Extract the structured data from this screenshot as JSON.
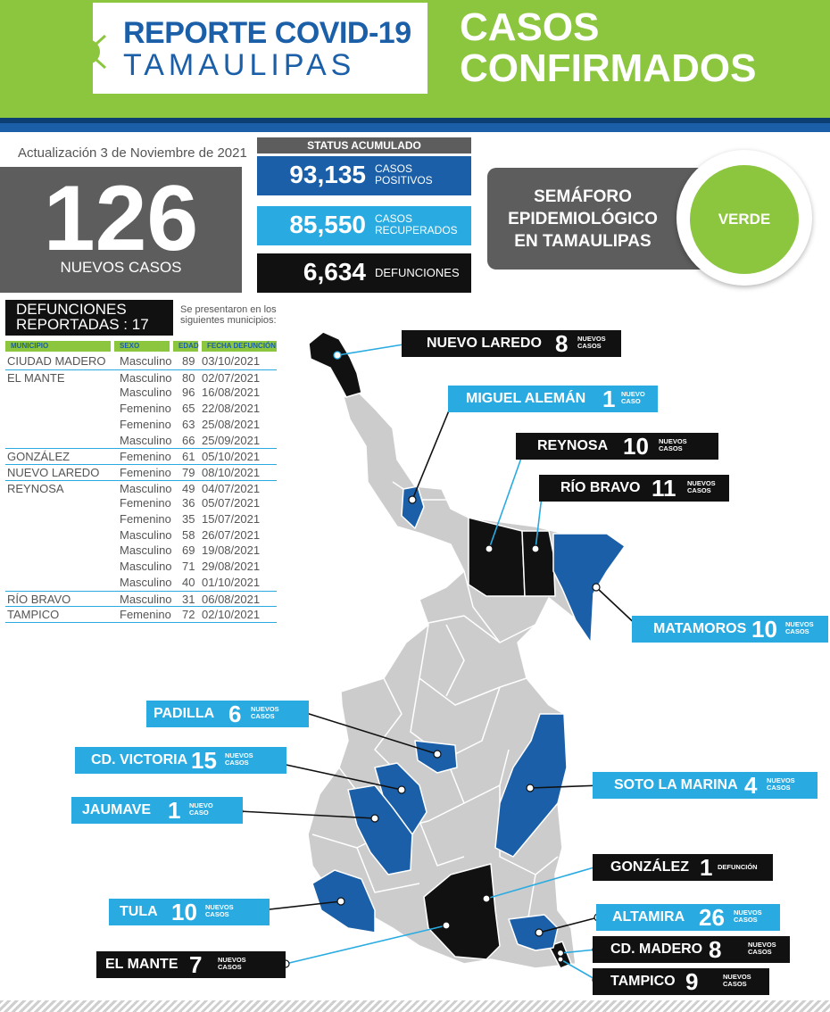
{
  "header": {
    "logo_line1": "REPORTE COVID-19",
    "logo_line2": "TAMAULIPAS",
    "title_line1": "CASOS",
    "title_line2": "CONFIRMADOS",
    "brand_green": "#8cc63f",
    "brand_blue": "#1a5fa8"
  },
  "update": "Actualización 3 de Noviembre de 2021",
  "new_cases": {
    "value": "126",
    "label": "NUEVOS CASOS"
  },
  "status": {
    "title": "STATUS ACUMULADO",
    "positives": {
      "value": "93,135",
      "label1": "CASOS",
      "label2": "POSITIVOS"
    },
    "recovered": {
      "value": "85,550",
      "label1": "CASOS",
      "label2": "RECUPERADOS"
    },
    "deaths": {
      "value": "6,634",
      "label": "DEFUNCIONES"
    }
  },
  "semaforo": {
    "line1": "SEMÁFORO",
    "line2": "EPIDEMIOLÓGICO",
    "line3": "EN TAMAULIPAS",
    "value": "VERDE",
    "color": "#8cc63f"
  },
  "deaths_table": {
    "title_line1": "DEFUNCIONES",
    "title_line2": "REPORTADAS : 17",
    "note": "Se presentaron en los siguientes municipios:",
    "headers": {
      "municipio": "MUNICIPIO",
      "sexo": "SEXO",
      "edad": "EDAD",
      "fecha": "FECHA DEFUNCIÓN"
    },
    "rows": [
      {
        "municipio": "CIUDAD MADERO",
        "sexo": "Masculino",
        "edad": "89",
        "fecha": "03/10/2021"
      },
      {
        "municipio": "EL MANTE",
        "sexo": "Masculino",
        "edad": "80",
        "fecha": "02/07/2021"
      },
      {
        "municipio": "",
        "sexo": "Masculino",
        "edad": "96",
        "fecha": "16/08/2021"
      },
      {
        "municipio": "",
        "sexo": "Femenino",
        "edad": "65",
        "fecha": "22/08/2021"
      },
      {
        "municipio": "",
        "sexo": "Femenino",
        "edad": "63",
        "fecha": "25/08/2021"
      },
      {
        "municipio": "",
        "sexo": "Masculino",
        "edad": "66",
        "fecha": "25/09/2021"
      },
      {
        "municipio": "GONZÁLEZ",
        "sexo": "Femenino",
        "edad": "61",
        "fecha": "05/10/2021"
      },
      {
        "municipio": "NUEVO LAREDO",
        "sexo": "Femenino",
        "edad": "79",
        "fecha": "08/10/2021"
      },
      {
        "municipio": "REYNOSA",
        "sexo": "Masculino",
        "edad": "49",
        "fecha": "04/07/2021"
      },
      {
        "municipio": "",
        "sexo": "Femenino",
        "edad": "36",
        "fecha": "05/07/2021"
      },
      {
        "municipio": "",
        "sexo": "Femenino",
        "edad": "35",
        "fecha": "15/07/2021"
      },
      {
        "municipio": "",
        "sexo": "Masculino",
        "edad": "58",
        "fecha": "26/07/2021"
      },
      {
        "municipio": "",
        "sexo": "Masculino",
        "edad": "69",
        "fecha": "19/08/2021"
      },
      {
        "municipio": "",
        "sexo": "Masculino",
        "edad": "71",
        "fecha": "29/08/2021"
      },
      {
        "municipio": "",
        "sexo": "Masculino",
        "edad": "40",
        "fecha": "01/10/2021"
      },
      {
        "municipio": "RÍO BRAVO",
        "sexo": "Masculino",
        "edad": "31",
        "fecha": "06/08/2021"
      },
      {
        "municipio": "TAMPICO",
        "sexo": "Femenino",
        "edad": "72",
        "fecha": "02/10/2021"
      }
    ]
  },
  "map_labels": {
    "nuevo_laredo": {
      "name": "NUEVO LAREDO",
      "num": "8",
      "unit1": "NUEVOS",
      "unit2": "CASOS"
    },
    "miguel_aleman": {
      "name": "MIGUEL ALEMÁN",
      "num": "1",
      "unit1": "NUEVO",
      "unit2": "CASO"
    },
    "reynosa": {
      "name": "REYNOSA",
      "num": "10",
      "unit1": "NUEVOS",
      "unit2": "CASOS"
    },
    "rio_bravo": {
      "name": "RÍO BRAVO",
      "num": "11",
      "unit1": "NUEVOS",
      "unit2": "CASOS"
    },
    "matamoros": {
      "name": "MATAMOROS",
      "num": "10",
      "unit1": "NUEVOS",
      "unit2": "CASOS"
    },
    "padilla": {
      "name": "PADILLA",
      "num": "6",
      "unit1": "NUEVOS",
      "unit2": "CASOS"
    },
    "cd_victoria": {
      "name": "CD. VICTORIA",
      "num": "15",
      "unit1": "NUEVOS",
      "unit2": "CASOS"
    },
    "soto_la_marina": {
      "name": "SOTO LA MARINA",
      "num": "4",
      "unit1": "NUEVOS",
      "unit2": "CASOS"
    },
    "jaumave": {
      "name": "JAUMAVE",
      "num": "1",
      "unit1": "NUEVO",
      "unit2": "CASO"
    },
    "gonzalez": {
      "name": "GONZÁLEZ",
      "num": "1",
      "unit1": "DEFUNCIÓN",
      "unit2": ""
    },
    "tula": {
      "name": "TULA",
      "num": "10",
      "unit1": "NUEVOS",
      "unit2": "CASOS"
    },
    "altamira": {
      "name": "ALTAMIRA",
      "num": "26",
      "unit1": "NUEVOS",
      "unit2": "CASOS"
    },
    "cd_madero": {
      "name": "CD. MADERO",
      "num": "8",
      "unit1": "NUEVOS",
      "unit2": "CASOS"
    },
    "el_mante": {
      "name": "EL MANTE",
      "num": "7",
      "unit1": "NUEVOS",
      "unit2": "CASOS"
    },
    "tampico": {
      "name": "TAMPICO",
      "num": "9",
      "unit1": "NUEVOS",
      "unit2": "CASOS"
    }
  }
}
